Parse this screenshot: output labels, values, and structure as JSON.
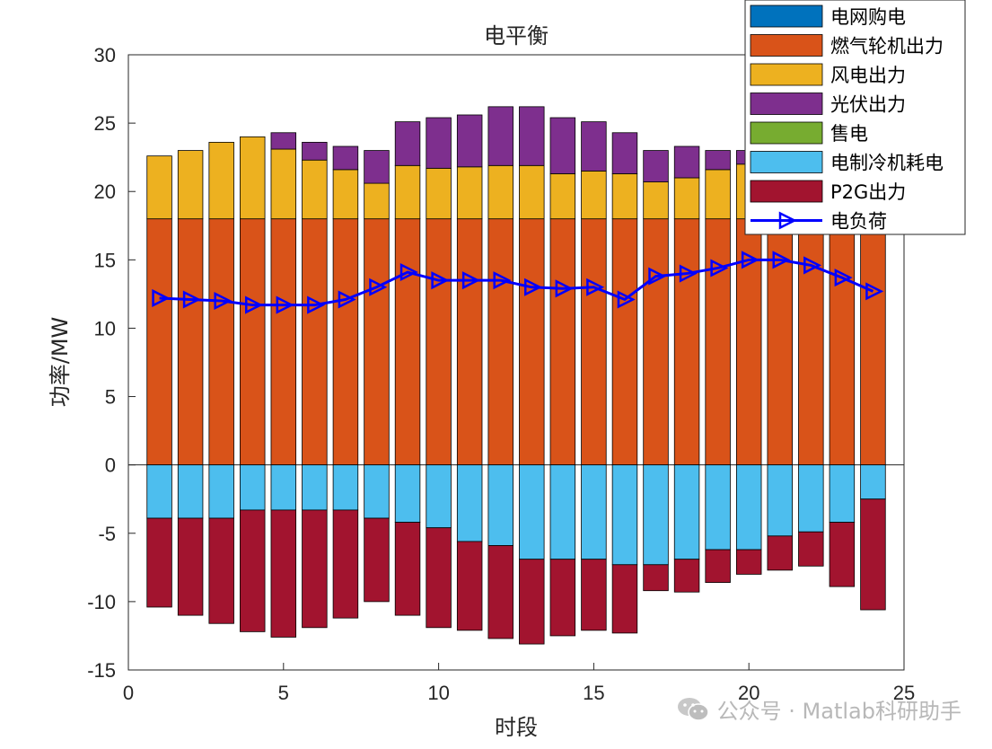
{
  "chart_data": {
    "type": "bar",
    "stacked": true,
    "title": "电平衡",
    "xlabel": "时段",
    "ylabel": "功率/MW",
    "xlim": [
      0,
      25
    ],
    "ylim": [
      -15,
      30
    ],
    "xticks": [
      "0",
      "5",
      "10",
      "15",
      "20",
      "25"
    ],
    "yticks": [
      "30",
      "25",
      "20",
      "15",
      "10",
      "5",
      "0",
      "-5",
      "-10",
      "-15"
    ],
    "categories": [
      1,
      2,
      3,
      4,
      5,
      6,
      7,
      8,
      9,
      10,
      11,
      12,
      13,
      14,
      15,
      16,
      17,
      18,
      19,
      20,
      21,
      22,
      23,
      24
    ],
    "series": [
      {
        "name": "电网购电",
        "color": "#0072BD",
        "values": [
          0,
          0,
          0,
          0,
          0,
          0,
          0,
          0,
          0,
          0,
          0,
          0,
          0,
          0,
          0,
          0,
          0,
          0,
          0,
          0,
          0,
          0,
          0,
          0
        ]
      },
      {
        "name": "燃气轮机出力",
        "color": "#D95319",
        "values": [
          18,
          18,
          18,
          18,
          18,
          18,
          18,
          18,
          18,
          18,
          18,
          18,
          18,
          18,
          18,
          18,
          18,
          18,
          18,
          18,
          18,
          18,
          18,
          18
        ]
      },
      {
        "name": "风电出力",
        "color": "#EDB120",
        "values": [
          4.6,
          5.0,
          5.6,
          6.0,
          5.1,
          4.3,
          3.6,
          2.6,
          3.9,
          3.7,
          3.8,
          3.9,
          3.9,
          3.3,
          3.5,
          3.3,
          2.7,
          3.0,
          3.6,
          4.0,
          0,
          0,
          0,
          0
        ]
      },
      {
        "name": "光伏出力",
        "color": "#7E2F8E",
        "values": [
          0,
          0,
          0,
          0,
          1.2,
          1.3,
          1.7,
          2.4,
          3.2,
          3.7,
          3.8,
          4.3,
          4.3,
          4.1,
          3.6,
          3.0,
          2.3,
          2.3,
          1.4,
          1.0,
          0,
          0,
          0,
          0
        ]
      },
      {
        "name": "售电",
        "color": "#77AC30",
        "values": [
          0,
          0,
          0,
          0,
          0,
          0,
          0,
          0,
          0,
          0,
          0,
          0,
          0,
          0,
          0,
          0,
          0,
          0,
          0,
          0,
          0,
          0,
          0,
          0
        ]
      },
      {
        "name": "电制冷机耗电",
        "color": "#4DBEEE",
        "values": [
          -3.9,
          -3.9,
          -3.9,
          -3.3,
          -3.3,
          -3.3,
          -3.3,
          -3.9,
          -4.2,
          -4.6,
          -5.6,
          -5.9,
          -6.9,
          -6.9,
          -6.9,
          -7.3,
          -7.3,
          -6.9,
          -6.2,
          -6.2,
          -5.2,
          -4.9,
          -4.2,
          -2.5
        ]
      },
      {
        "name": "P2G出力",
        "color": "#A2142F",
        "values": [
          -6.5,
          -7.1,
          -7.7,
          -8.9,
          -9.3,
          -8.6,
          -7.9,
          -6.1,
          -6.8,
          -7.3,
          -6.5,
          -6.8,
          -6.2,
          -5.6,
          -5.2,
          -5.0,
          -1.9,
          -2.4,
          -2.4,
          -1.8,
          -2.5,
          -2.5,
          -4.7,
          -8.1
        ]
      }
    ],
    "line": {
      "name": "电负荷",
      "color": "#0000FF",
      "marker": "triangle-right",
      "values": [
        12.2,
        12.1,
        12.0,
        11.7,
        11.7,
        11.7,
        12.1,
        13.0,
        14.1,
        13.5,
        13.5,
        13.5,
        13.0,
        12.9,
        13.0,
        12.1,
        13.8,
        14.0,
        14.4,
        15.0,
        15.0,
        14.6,
        13.7,
        12.7
      ]
    },
    "legend_position": "top-right"
  },
  "watermark": {
    "text": "公众号 · Matlab科研助手",
    "icon": "wechat-icon"
  }
}
